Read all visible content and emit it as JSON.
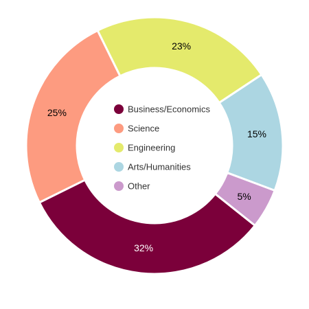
{
  "chart_data": {
    "type": "pie",
    "variant": "donut",
    "categories": [
      "Business/Economics",
      "Science",
      "Engineering",
      "Arts/Humanities",
      "Other"
    ],
    "values": [
      32,
      25,
      23,
      15,
      5
    ],
    "data_labels": [
      "32%",
      "25%",
      "23%",
      "15%",
      "5%"
    ],
    "colors": [
      "#7b003a",
      "#fd9b80",
      "#e4ea6c",
      "#acd6e2",
      "#cb9acc"
    ],
    "label_colors": [
      "#ffffff",
      "#000000",
      "#000000",
      "#000000",
      "#000000"
    ],
    "legend_placement": "center",
    "title": ""
  }
}
